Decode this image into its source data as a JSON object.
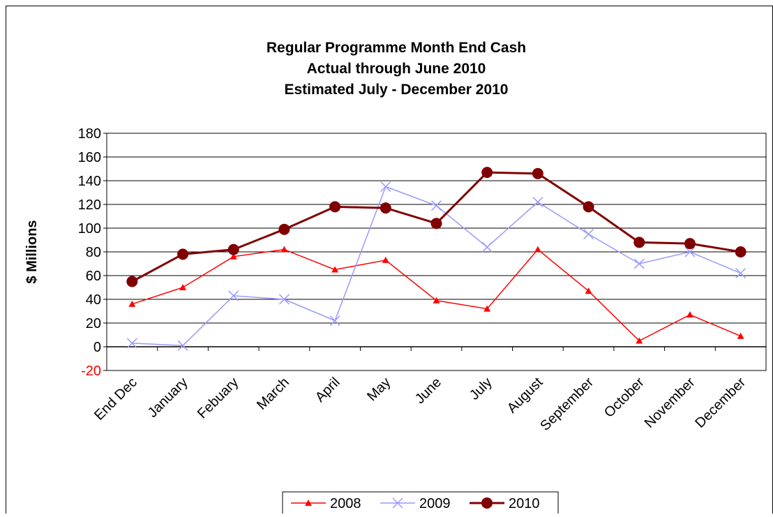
{
  "chart_data": {
    "type": "line",
    "title": [
      "Regular Programme Month End Cash",
      "Actual through June 2010",
      "Estimated July - December 2010"
    ],
    "y_label": "$ Millions",
    "categories": [
      "End Dec",
      "January",
      "Febuary",
      "March",
      "April",
      "May",
      "June",
      "July",
      "August",
      "September",
      "October",
      "November",
      "December"
    ],
    "series": [
      {
        "name": "2008",
        "color": "#ff0000",
        "marker": "triangle",
        "values": [
          36,
          50,
          76,
          82,
          65,
          73,
          39,
          32,
          82,
          47,
          5,
          27,
          9
        ]
      },
      {
        "name": "2009",
        "color": "#9999ff",
        "marker": "x",
        "values": [
          3,
          1,
          43,
          40,
          22,
          135,
          119,
          84,
          122,
          95,
          70,
          80,
          62
        ]
      },
      {
        "name": "2010",
        "color": "#800000",
        "marker": "circle",
        "values": [
          55,
          78,
          82,
          99,
          118,
          117,
          104,
          147,
          146,
          118,
          88,
          87,
          80
        ]
      }
    ],
    "ylim": [
      -20,
      180
    ],
    "yticks": [
      -20,
      0,
      20,
      40,
      60,
      80,
      100,
      120,
      140,
      160,
      180
    ],
    "negative_tick_color": "#ff0000",
    "grid": true,
    "legend": "bottom"
  }
}
